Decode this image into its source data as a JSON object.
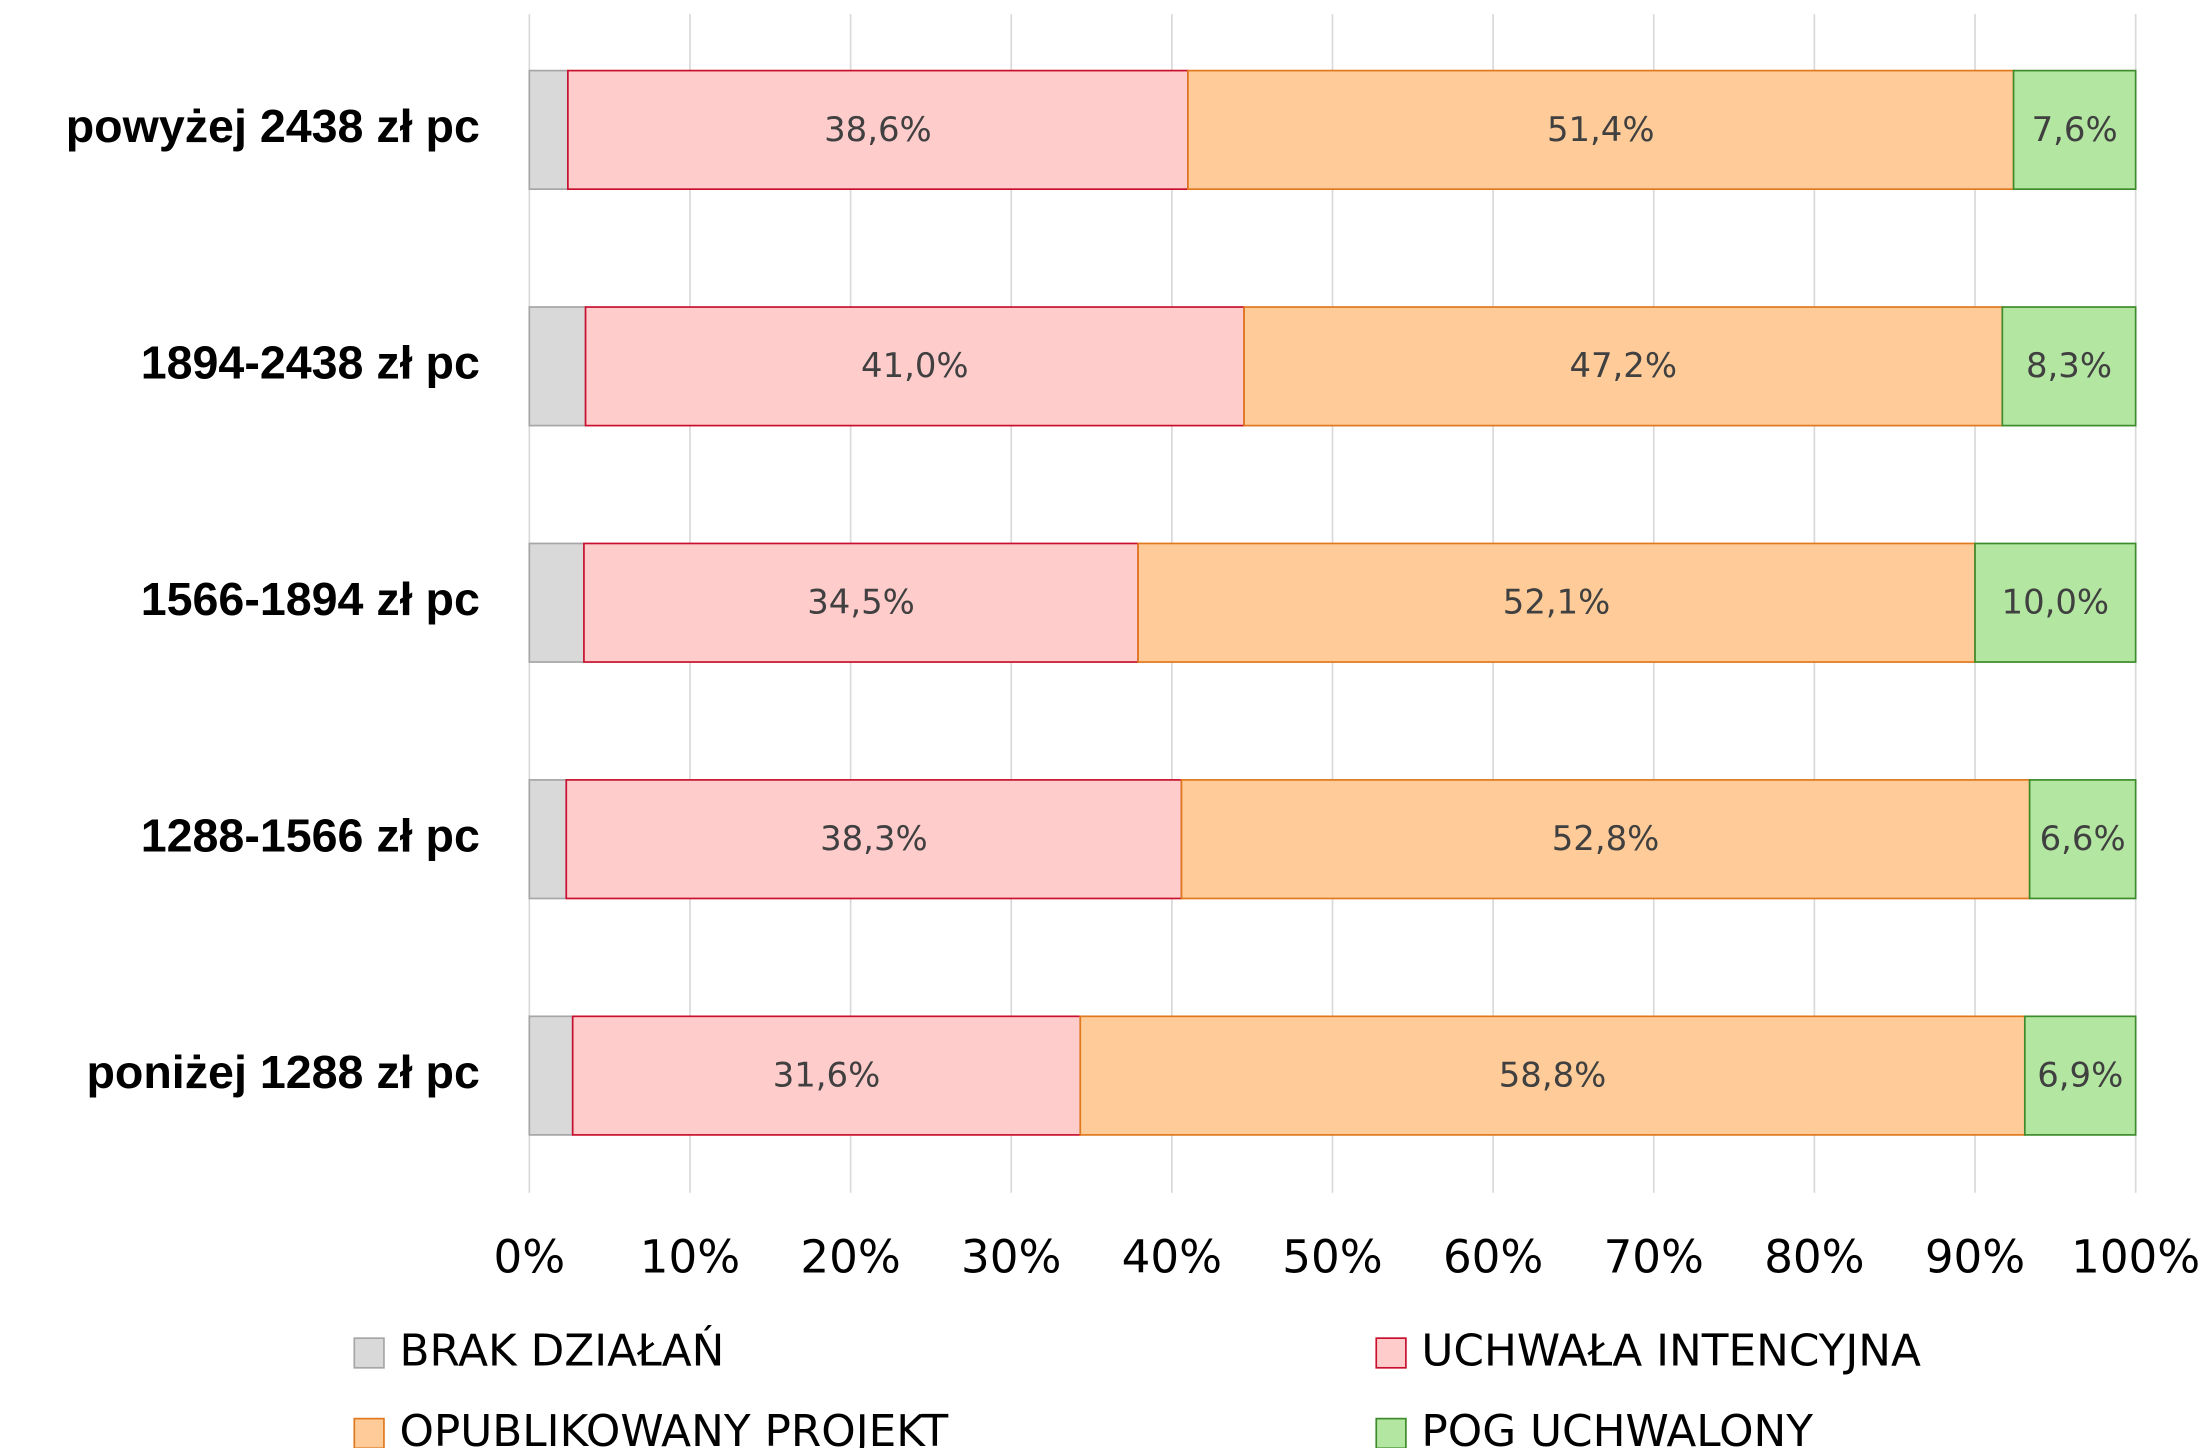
{
  "chart_data": {
    "type": "stacked-bar-horizontal",
    "categories": [
      "powyżej 2438 zł pc",
      "1894-2438 zł pc",
      "1566-1894 zł pc",
      "1288-1566 zł pc",
      "poniżej 1288 zł pc"
    ],
    "series": [
      {
        "name": "BRAK DZIAŁAŃ",
        "color": "#d9d9d9",
        "stroke": "#a6a6a6",
        "values": [
          2.4,
          3.5,
          3.4,
          2.3,
          2.7
        ]
      },
      {
        "name": "UCHWAŁA INTENCYJNA",
        "color": "#ffcccc",
        "stroke": "#c8102e",
        "values": [
          38.6,
          41.0,
          34.5,
          38.3,
          31.6
        ],
        "value_labels": [
          "38,6%",
          "41,0%",
          "34,5%",
          "38,3%",
          "31,6%"
        ]
      },
      {
        "name": "OPUBLIKOWANY PROJEKT",
        "color": "#ffcc99",
        "stroke": "#e0781e",
        "values": [
          51.4,
          47.2,
          52.1,
          52.8,
          58.8
        ],
        "value_labels": [
          "51,4%",
          "47,2%",
          "52,1%",
          "52,8%",
          "58,8%"
        ]
      },
      {
        "name": "POG UCHWALONY",
        "color": "#b3e6a1",
        "stroke": "#3d8b2a",
        "values": [
          7.6,
          8.3,
          10.0,
          6.6,
          6.9
        ],
        "value_labels": [
          "7,6%",
          "8,3%",
          "10,0%",
          "6,6%",
          "6,9%"
        ]
      }
    ],
    "xlim": [
      0,
      100
    ],
    "xticks": [
      {
        "value": 0,
        "label": "0%"
      },
      {
        "value": 10,
        "label": "10%"
      },
      {
        "value": 20,
        "label": "20%"
      },
      {
        "value": 30,
        "label": "30%"
      },
      {
        "value": 40,
        "label": "40%"
      },
      {
        "value": 50,
        "label": "50%"
      },
      {
        "value": 60,
        "label": "60%"
      },
      {
        "value": 70,
        "label": "70%"
      },
      {
        "value": 80,
        "label": "80%"
      },
      {
        "value": 90,
        "label": "90%"
      },
      {
        "value": 100,
        "label": "100%"
      }
    ],
    "grid": true
  }
}
